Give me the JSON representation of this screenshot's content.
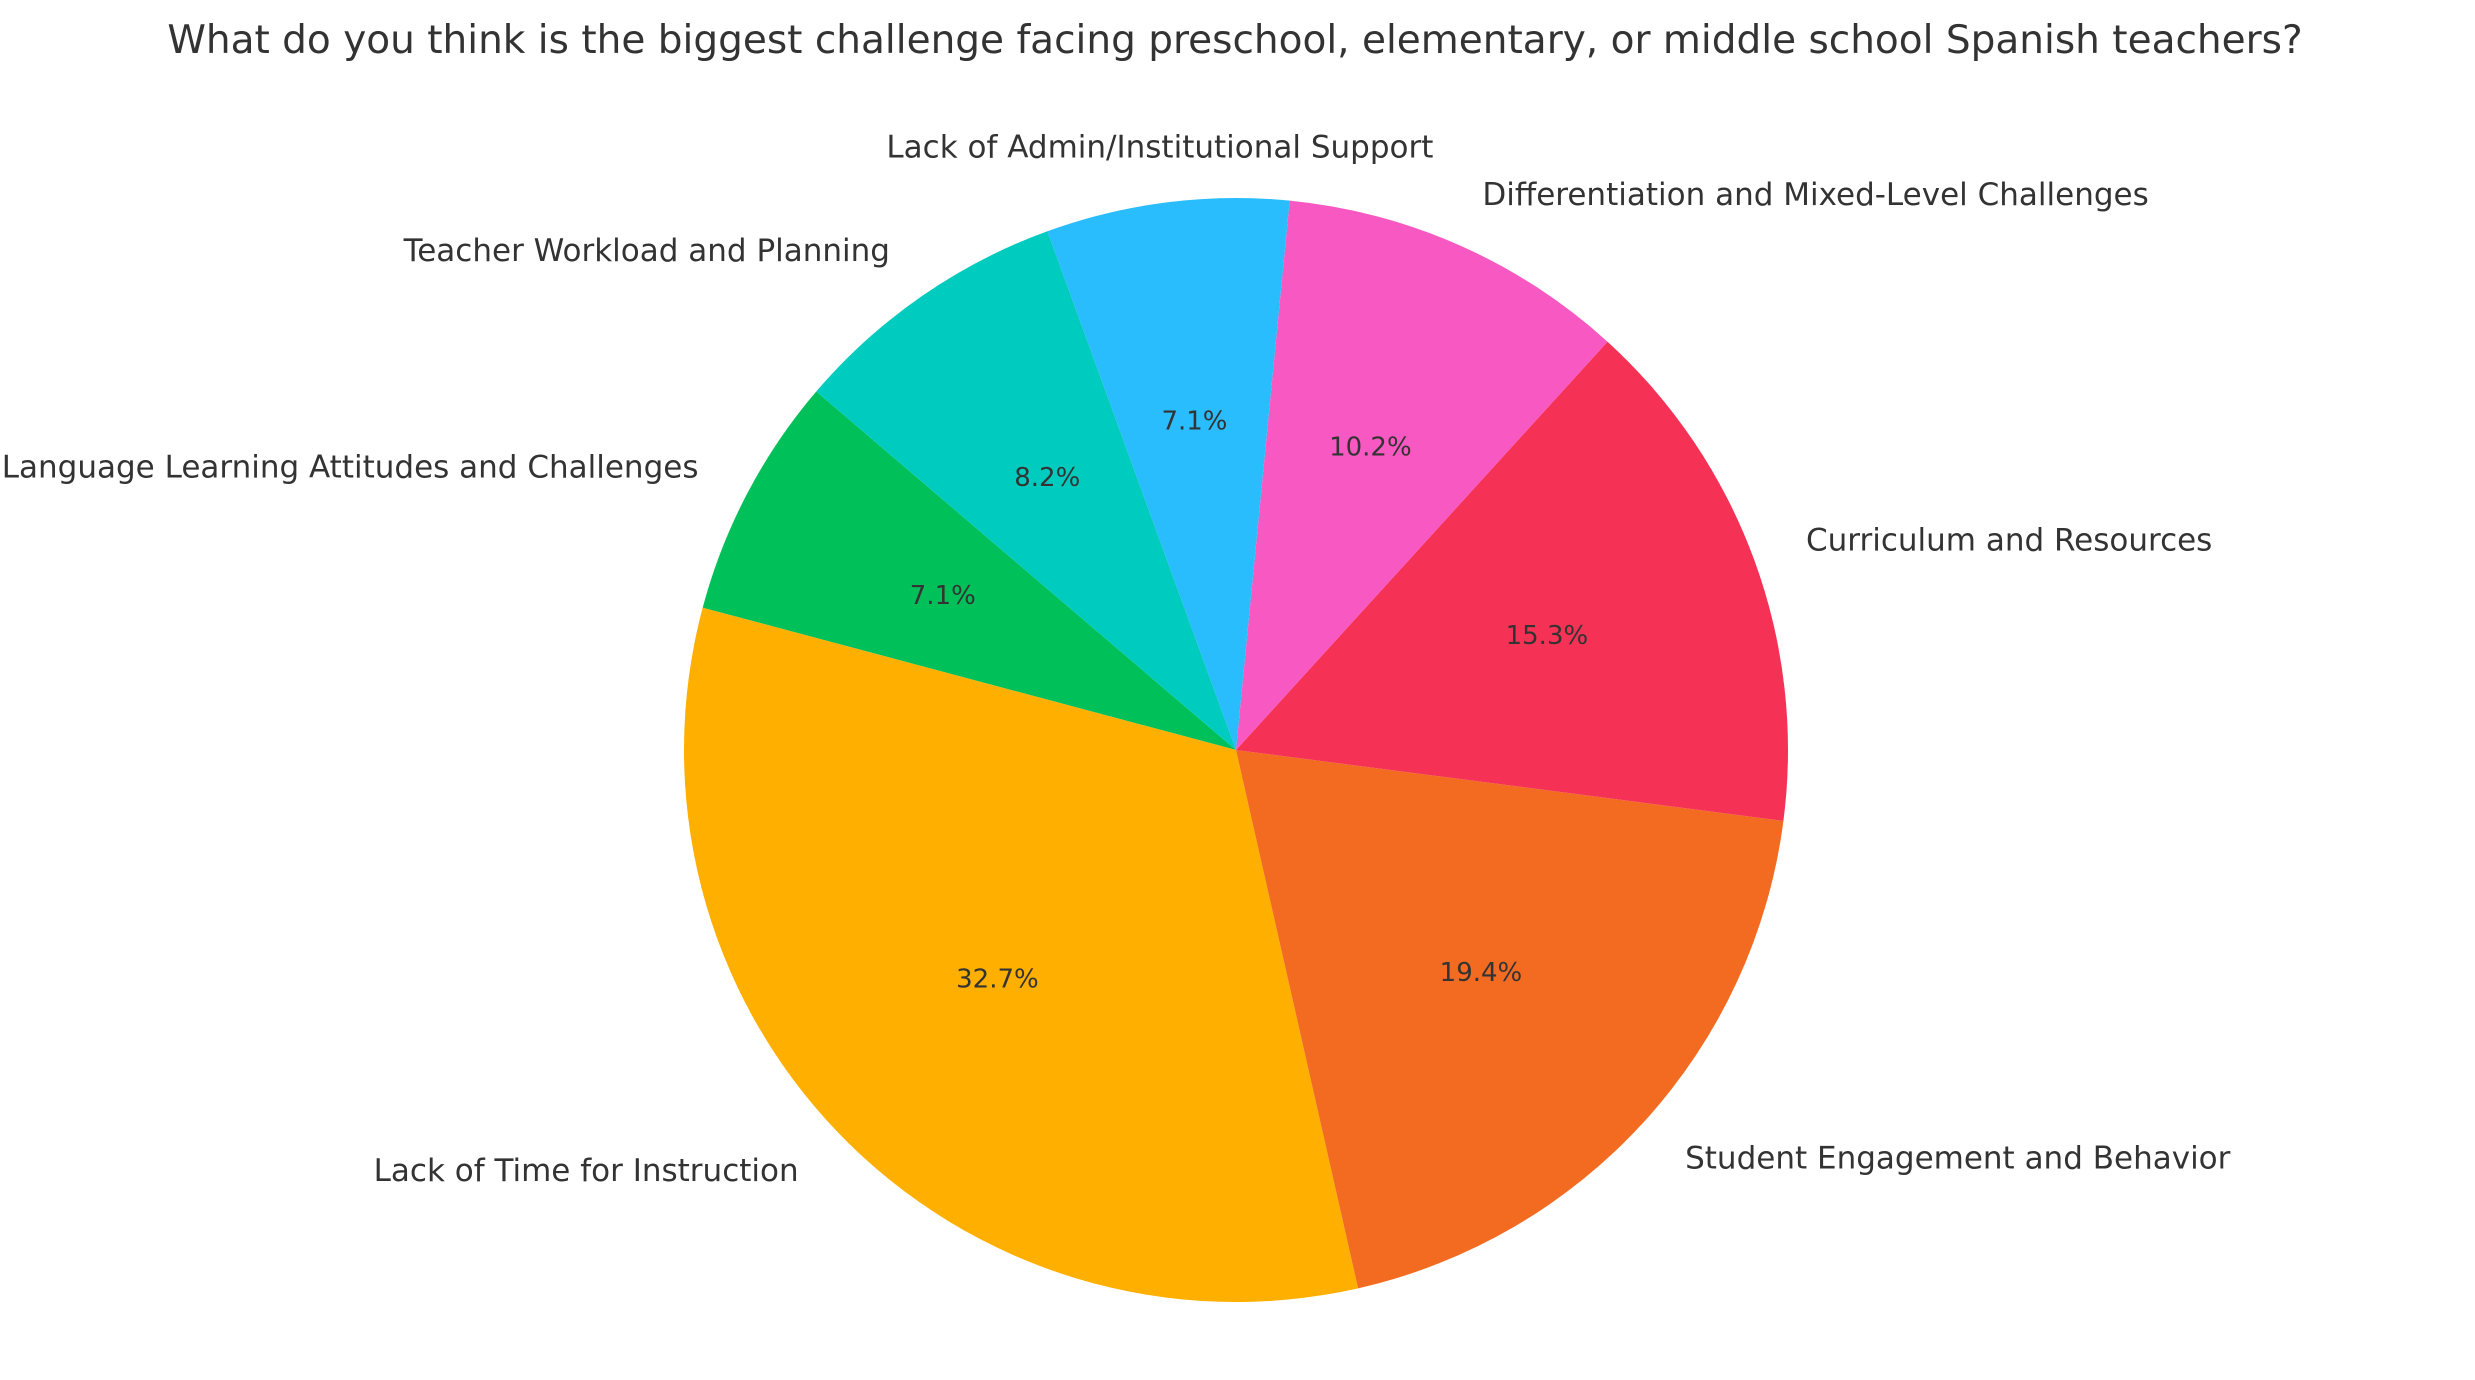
{
  "chart_data": {
    "type": "pie",
    "title": "What do you think is the biggest challenge facing preschool, elementary, or middle school Spanish teachers?",
    "start_angle_deg": 139.5,
    "direction": "counterclockwise",
    "slices": [
      {
        "label": "Language Learning Attitudes and Challenges",
        "value": 7.1,
        "pct_label": "7.1%",
        "color": "#00C05A"
      },
      {
        "label": "Lack of Time for Instruction",
        "value": 32.7,
        "pct_label": "32.7%",
        "color": "#FFAF00"
      },
      {
        "label": "Student Engagement and Behavior",
        "value": 19.4,
        "pct_label": "19.4%",
        "color": "#F26B21"
      },
      {
        "label": "Curriculum and Resources",
        "value": 15.3,
        "pct_label": "15.3%",
        "color": "#F53255"
      },
      {
        "label": "Differentiation and Mixed-Level Challenges",
        "value": 10.2,
        "pct_label": "10.2%",
        "color": "#F858C1"
      },
      {
        "label": "Lack of Admin/Institutional Support",
        "value": 7.1,
        "pct_label": "7.1%",
        "color": "#29BDFD"
      },
      {
        "label": "Teacher Workload and Planning",
        "value": 8.2,
        "pct_label": "8.2%",
        "color": "#00CBBF"
      }
    ]
  }
}
